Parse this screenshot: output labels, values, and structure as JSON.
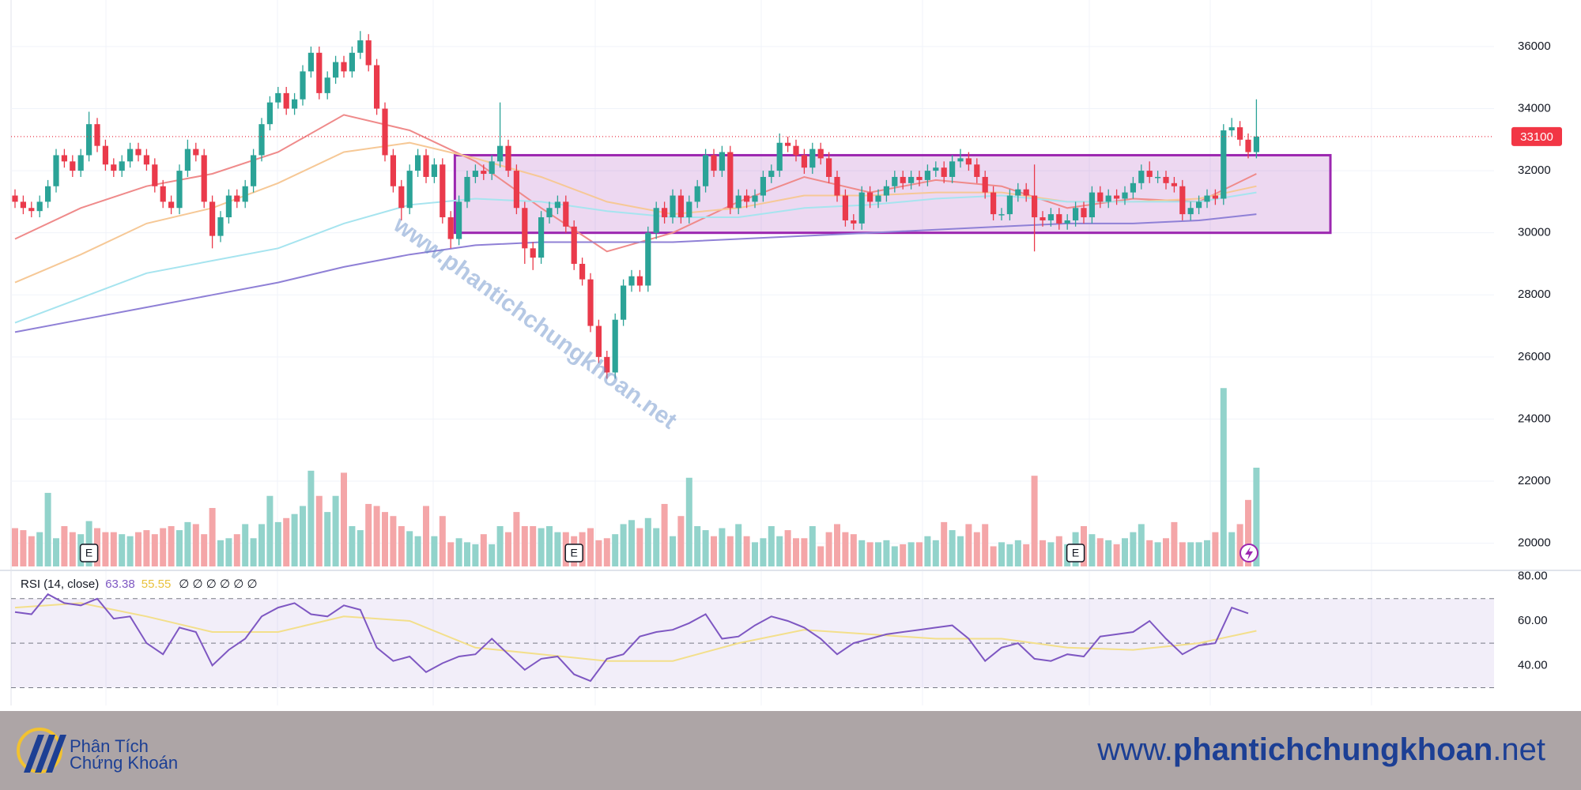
{
  "chart_data": {
    "type": "candlestick",
    "up_color": "#2ba397",
    "down_color": "#ea3a4b",
    "volume_up_color": "#92d3cb",
    "volume_down_color": "#f4a6a8",
    "ylim": [
      19150,
      37500
    ],
    "yticks": [
      20000,
      22000,
      24000,
      26000,
      28000,
      30000,
      32000,
      34000,
      36000
    ],
    "grid": true,
    "last_price": 33100,
    "open": [
      31200,
      31000,
      30800,
      30700,
      31000,
      31500,
      32500,
      32300,
      32000,
      32500,
      33500,
      32800,
      32200,
      32000,
      32300,
      32700,
      32500,
      32200,
      31500,
      31000,
      30800,
      32000,
      32700,
      32500,
      31000,
      29900,
      30500,
      31200,
      31000,
      31500,
      32500,
      33500,
      34200,
      34500,
      34000,
      34300,
      35200,
      35800,
      34500,
      35000,
      35500,
      35200,
      35800,
      36200,
      35400,
      34000,
      32500,
      31500,
      30800,
      32000,
      32500,
      31800,
      32200,
      30500,
      29800,
      31000,
      31800,
      32000,
      31900,
      32300,
      32800,
      32000,
      30800,
      29500,
      29200,
      30500,
      30800,
      31000,
      30200,
      29000,
      28500,
      27000,
      26000,
      25500,
      27200,
      28300,
      28600,
      28300,
      30000,
      30800,
      30500,
      31200,
      30500,
      31000,
      31500,
      32500,
      32000,
      32600,
      30800,
      31200,
      31000,
      31200,
      31800,
      32000,
      32900,
      32800,
      32500,
      32100,
      32700,
      32400,
      31800,
      31200,
      30400,
      30300,
      31300,
      31000,
      31200,
      31500,
      31800,
      31600,
      31800,
      31700,
      32000,
      32100,
      31800,
      32300,
      32400,
      32200,
      31800,
      31300,
      30600,
      30600,
      31200,
      31400,
      31200,
      30500,
      30400,
      30600,
      30300,
      30400,
      30800,
      30500,
      31300,
      31000,
      31200,
      31100,
      31300,
      31600,
      32000,
      31800,
      31800,
      31600,
      31500,
      30600,
      30800,
      31000,
      31200,
      31100,
      33300,
      33400,
      33000,
      32600
    ],
    "high": [
      31400,
      31200,
      31000,
      31200,
      31700,
      32700,
      32700,
      32500,
      32700,
      33900,
      33700,
      33000,
      32400,
      32500,
      32900,
      32900,
      32700,
      32400,
      31700,
      31200,
      32200,
      33000,
      32900,
      32700,
      31200,
      30700,
      31400,
      31400,
      31700,
      32700,
      33700,
      34400,
      34700,
      34700,
      34500,
      35400,
      36000,
      36000,
      35200,
      35700,
      35700,
      36000,
      36500,
      36400,
      35600,
      34200,
      32700,
      31700,
      32200,
      32700,
      32700,
      32400,
      32400,
      30700,
      31200,
      32000,
      32200,
      32200,
      32500,
      34200,
      33000,
      32200,
      31000,
      29700,
      30700,
      31000,
      31200,
      31200,
      30400,
      29200,
      28700,
      27200,
      26200,
      27400,
      28500,
      28800,
      28800,
      30200,
      31000,
      31000,
      31400,
      31400,
      31200,
      31700,
      32700,
      32700,
      32800,
      32800,
      31400,
      31400,
      31400,
      32000,
      32200,
      33200,
      33100,
      33000,
      32700,
      32900,
      32900,
      32600,
      32000,
      31400,
      30600,
      31500,
      31500,
      31400,
      31700,
      32000,
      32000,
      32000,
      32000,
      32200,
      32300,
      32300,
      32500,
      32700,
      32600,
      32400,
      32000,
      31500,
      30800,
      31400,
      31600,
      31600,
      32200,
      30700,
      30800,
      30800,
      30600,
      31000,
      31000,
      31500,
      31500,
      31400,
      31400,
      31500,
      31800,
      32200,
      32300,
      32000,
      32000,
      31800,
      31700,
      31000,
      31200,
      31400,
      31400,
      33500,
      33700,
      33600,
      33200,
      34300
    ],
    "low": [
      30800,
      30600,
      30500,
      30500,
      30800,
      31300,
      32100,
      31800,
      31800,
      32300,
      32600,
      32000,
      31800,
      31800,
      32100,
      32300,
      32000,
      31300,
      30800,
      30600,
      30600,
      31800,
      32300,
      30800,
      29500,
      29700,
      30300,
      30800,
      30800,
      31300,
      32300,
      33300,
      34000,
      33800,
      33800,
      34100,
      35000,
      34300,
      34300,
      34800,
      35000,
      35000,
      35600,
      35200,
      33800,
      32300,
      31300,
      30400,
      30600,
      31800,
      31600,
      31600,
      30300,
      29500,
      29600,
      30800,
      31600,
      31700,
      31700,
      32100,
      31800,
      30600,
      29000,
      28800,
      29000,
      30300,
      30600,
      30000,
      28800,
      28300,
      26800,
      25800,
      25300,
      25300,
      27000,
      28100,
      28100,
      28100,
      29800,
      30300,
      30300,
      30300,
      30300,
      30800,
      31300,
      31800,
      31800,
      30600,
      30600,
      30800,
      30800,
      31000,
      31600,
      31800,
      32600,
      32300,
      31900,
      31900,
      32200,
      31600,
      31000,
      30200,
      30100,
      30100,
      30800,
      30800,
      31000,
      31300,
      31400,
      31400,
      31500,
      31500,
      31800,
      31600,
      31600,
      32100,
      32000,
      31600,
      31100,
      30400,
      30400,
      30400,
      31000,
      31000,
      29400,
      30200,
      30200,
      30100,
      30100,
      30200,
      30300,
      30300,
      30800,
      30800,
      30900,
      30900,
      31100,
      31400,
      31600,
      31600,
      31400,
      31300,
      30400,
      30400,
      30600,
      30800,
      30900,
      30900,
      33100,
      32800,
      32400,
      32400
    ],
    "close": [
      31000,
      30800,
      30700,
      31000,
      31500,
      32500,
      32300,
      32000,
      32500,
      33500,
      32800,
      32200,
      32000,
      32300,
      32700,
      32500,
      32200,
      31500,
      31000,
      30800,
      32000,
      32700,
      32500,
      31000,
      29900,
      30500,
      31200,
      31000,
      31500,
      32500,
      33500,
      34200,
      34500,
      34000,
      34300,
      35200,
      35800,
      34500,
      35000,
      35500,
      35200,
      35800,
      36200,
      35400,
      34000,
      32500,
      31500,
      30800,
      32000,
      32500,
      31800,
      32200,
      30500,
      29800,
      31000,
      31800,
      32000,
      31900,
      32300,
      32800,
      32000,
      30800,
      29500,
      29200,
      30500,
      30800,
      31000,
      30200,
      29000,
      28500,
      27000,
      26000,
      25500,
      27200,
      28300,
      28600,
      28300,
      30000,
      30800,
      30500,
      31200,
      30500,
      31000,
      31500,
      32500,
      32000,
      32600,
      30800,
      31200,
      31000,
      31200,
      31800,
      32000,
      32900,
      32800,
      32500,
      32100,
      32700,
      32400,
      31800,
      31200,
      30400,
      30300,
      31300,
      31000,
      31200,
      31500,
      31800,
      31600,
      31800,
      31700,
      32000,
      32100,
      31800,
      32300,
      32400,
      32200,
      31800,
      31300,
      30600,
      30600,
      31200,
      31400,
      31200,
      30500,
      30400,
      30600,
      30300,
      30400,
      30800,
      30500,
      31300,
      31000,
      31200,
      31100,
      31300,
      31600,
      32000,
      31800,
      31800,
      31600,
      31500,
      30600,
      30800,
      31000,
      31200,
      31100,
      33300,
      33400,
      33000,
      32600,
      33100
    ],
    "volume": [
      38,
      36,
      30,
      34,
      73,
      28,
      40,
      34,
      32,
      45,
      38,
      34,
      34,
      32,
      30,
      34,
      36,
      32,
      38,
      40,
      36,
      44,
      42,
      32,
      58,
      26,
      28,
      32,
      42,
      28,
      42,
      70,
      44,
      48,
      52,
      60,
      95,
      70,
      54,
      70,
      93,
      40,
      36,
      62,
      60,
      54,
      50,
      40,
      35,
      30,
      60,
      30,
      50,
      24,
      28,
      24,
      22,
      32,
      22,
      40,
      34,
      54,
      40,
      40,
      38,
      40,
      34,
      34,
      30,
      34,
      38,
      26,
      28,
      32,
      42,
      46,
      38,
      48,
      38,
      62,
      30,
      50,
      88,
      40,
      36,
      30,
      38,
      30,
      42,
      30,
      24,
      28,
      40,
      30,
      36,
      28,
      28,
      40,
      20,
      34,
      42,
      34,
      32,
      26,
      24,
      24,
      26,
      20,
      22,
      24,
      24,
      30,
      26,
      44,
      36,
      30,
      42,
      34,
      42,
      20,
      24,
      22,
      26,
      22,
      90,
      26,
      24,
      30,
      22,
      34,
      40,
      32,
      28,
      26,
      22,
      28,
      34,
      42,
      26,
      24,
      28,
      44,
      24,
      24,
      24,
      26,
      34,
      177,
      34,
      42,
      66,
      98
    ],
    "ma_index": [
      0,
      8,
      16,
      24,
      32,
      40,
      48,
      56,
      64,
      72,
      80,
      88,
      96,
      104,
      112,
      120,
      128,
      136,
      144,
      151
    ],
    "ma_lines": [
      {
        "color": "#ef8a8a",
        "values": [
          29800,
          30800,
          31500,
          31900,
          32600,
          33800,
          33300,
          32300,
          30800,
          29400,
          30000,
          31000,
          31800,
          31300,
          31700,
          31500,
          30800,
          31100,
          31000,
          31900
        ]
      },
      {
        "color": "#f6c896",
        "values": [
          28400,
          29300,
          30300,
          30800,
          31600,
          32600,
          32900,
          32400,
          31800,
          31000,
          30600,
          30800,
          31200,
          31200,
          31300,
          31300,
          31000,
          31000,
          31100,
          31500
        ]
      },
      {
        "color": "#a6e4ef",
        "values": [
          27100,
          27900,
          28700,
          29100,
          29500,
          30300,
          30900,
          31100,
          31000,
          30700,
          30500,
          30500,
          30800,
          30900,
          31100,
          31200,
          31000,
          31000,
          31000,
          31300
        ]
      },
      {
        "color": "#8f80d6",
        "values": [
          26800,
          27200,
          27600,
          28000,
          28400,
          28900,
          29300,
          29600,
          29700,
          29700,
          29700,
          29800,
          29900,
          30000,
          30100,
          30200,
          30300,
          30300,
          30400,
          30600
        ]
      }
    ],
    "box": {
      "x": [
        53.5,
        160
      ],
      "y": [
        30000,
        32500
      ],
      "color": "#9c27b0"
    },
    "events": [
      {
        "index": 9,
        "label": "E"
      },
      {
        "index": 68,
        "label": "E"
      },
      {
        "index": 129,
        "label": "E"
      }
    ],
    "rsi": {
      "title": "RSI (14, close)",
      "extra": "∅ ∅ ∅ ∅ ∅ ∅",
      "color": "#7e57c2",
      "signal_color": "#f3df8b",
      "ylim": [
        22,
        82
      ],
      "yticks": [
        {
          "value": 80,
          "label": "80.00"
        },
        {
          "value": 60,
          "label": "60.00"
        },
        {
          "value": 40,
          "label": "40.00"
        }
      ],
      "levels": [
        70,
        50,
        30
      ],
      "index": [
        0,
        2,
        4,
        6,
        8,
        10,
        12,
        14,
        16,
        18,
        20,
        22,
        24,
        26,
        28,
        30,
        32,
        34,
        36,
        38,
        40,
        42,
        44,
        46,
        48,
        50,
        52,
        54,
        56,
        58,
        60,
        62,
        64,
        66,
        68,
        70,
        72,
        74,
        76,
        78,
        80,
        82,
        84,
        86,
        88,
        90,
        92,
        94,
        96,
        98,
        100,
        102,
        104,
        106,
        108,
        110,
        112,
        114,
        116,
        118,
        120,
        122,
        124,
        126,
        128,
        130,
        132,
        134,
        136,
        138,
        140,
        142,
        144,
        146,
        148,
        150
      ],
      "values": [
        64,
        63,
        72,
        68,
        67,
        70,
        61,
        62,
        50,
        45,
        57,
        55,
        40,
        47,
        52,
        62,
        66,
        68,
        63,
        62,
        67,
        65,
        48,
        42,
        44,
        37,
        41,
        44,
        45,
        52,
        45,
        38,
        43,
        44,
        36,
        33,
        43,
        45,
        53,
        55,
        56,
        59,
        63,
        52,
        53,
        58,
        62,
        60,
        57,
        52,
        45,
        50,
        52,
        54,
        55,
        56,
        57,
        58,
        52,
        42,
        48,
        50,
        43,
        42,
        45,
        44,
        53,
        54,
        55,
        60,
        52,
        45,
        49,
        50,
        66,
        63.38
      ],
      "signal_values": [
        66,
        68,
        62,
        55,
        55,
        62,
        60,
        48,
        45,
        42,
        42,
        50,
        56,
        54,
        52,
        52,
        48,
        47,
        50,
        55.55
      ]
    }
  },
  "watermark": "www.phantichchungkhoan.net",
  "footer": {
    "logo_line1": "Phân Tích",
    "logo_line2": "Chứng Khoán",
    "url_prefix": "www.",
    "url_main": "phantichchungkhoan",
    "url_suffix": ".net"
  }
}
